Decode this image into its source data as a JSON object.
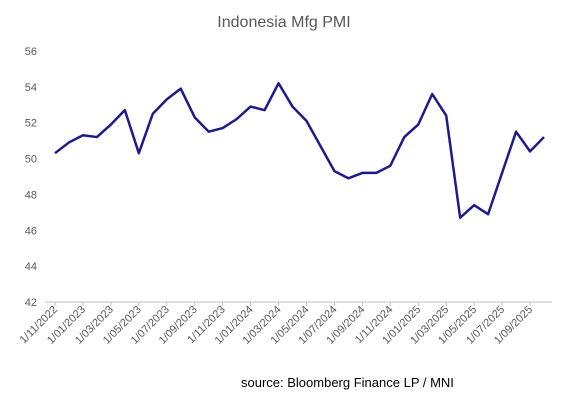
{
  "chart_data": {
    "type": "line",
    "title": "Indonesia Mfg PMI",
    "xlabel": "",
    "ylabel": "",
    "ylim": [
      42,
      56
    ],
    "yticks": [
      42,
      44,
      46,
      48,
      50,
      52,
      54,
      56
    ],
    "grid": false,
    "x": [
      "1/11/2022",
      "1/12/2022",
      "1/01/2023",
      "1/02/2023",
      "1/03/2023",
      "1/04/2023",
      "1/05/2023",
      "1/06/2023",
      "1/07/2023",
      "1/08/2023",
      "1/09/2023",
      "1/10/2023",
      "1/11/2023",
      "1/12/2023",
      "1/01/2024",
      "1/02/2024",
      "1/03/2024",
      "1/04/2024",
      "1/05/2024",
      "1/06/2024",
      "1/07/2024",
      "1/08/2024",
      "1/09/2024",
      "1/10/2024",
      "1/11/2024",
      "1/12/2024",
      "1/01/2025",
      "1/02/2025",
      "1/03/2025",
      "1/04/2025",
      "1/05/2025",
      "1/06/2025",
      "1/07/2025",
      "1/08/2025",
      "1/09/2025",
      "1/10/2025"
    ],
    "xtick_labels": [
      "1/11/2022",
      "1/01/2023",
      "1/03/2023",
      "1/05/2023",
      "1/07/2023",
      "1/09/2023",
      "1/11/2023",
      "1/01/2024",
      "1/03/2024",
      "1/05/2024",
      "1/07/2024",
      "1/09/2024",
      "1/11/2024",
      "1/01/2025",
      "1/03/2025",
      "1/05/2025",
      "1/07/2025",
      "1/09/2025"
    ],
    "series": [
      {
        "values": [
          50.3,
          50.9,
          51.3,
          51.2,
          51.9,
          52.7,
          50.3,
          52.5,
          53.3,
          53.9,
          52.3,
          51.5,
          51.7,
          52.2,
          52.9,
          52.7,
          54.2,
          52.9,
          52.1,
          50.7,
          49.3,
          48.9,
          49.2,
          49.2,
          49.6,
          51.2,
          51.9,
          53.6,
          52.4,
          46.7,
          47.4,
          46.9,
          49.2,
          51.5,
          50.4,
          51.2
        ],
        "color": "#1f1a8a"
      }
    ],
    "line_color": "#1f1a8a"
  },
  "source_note": "source:  Bloomberg Finance LP / MNI"
}
